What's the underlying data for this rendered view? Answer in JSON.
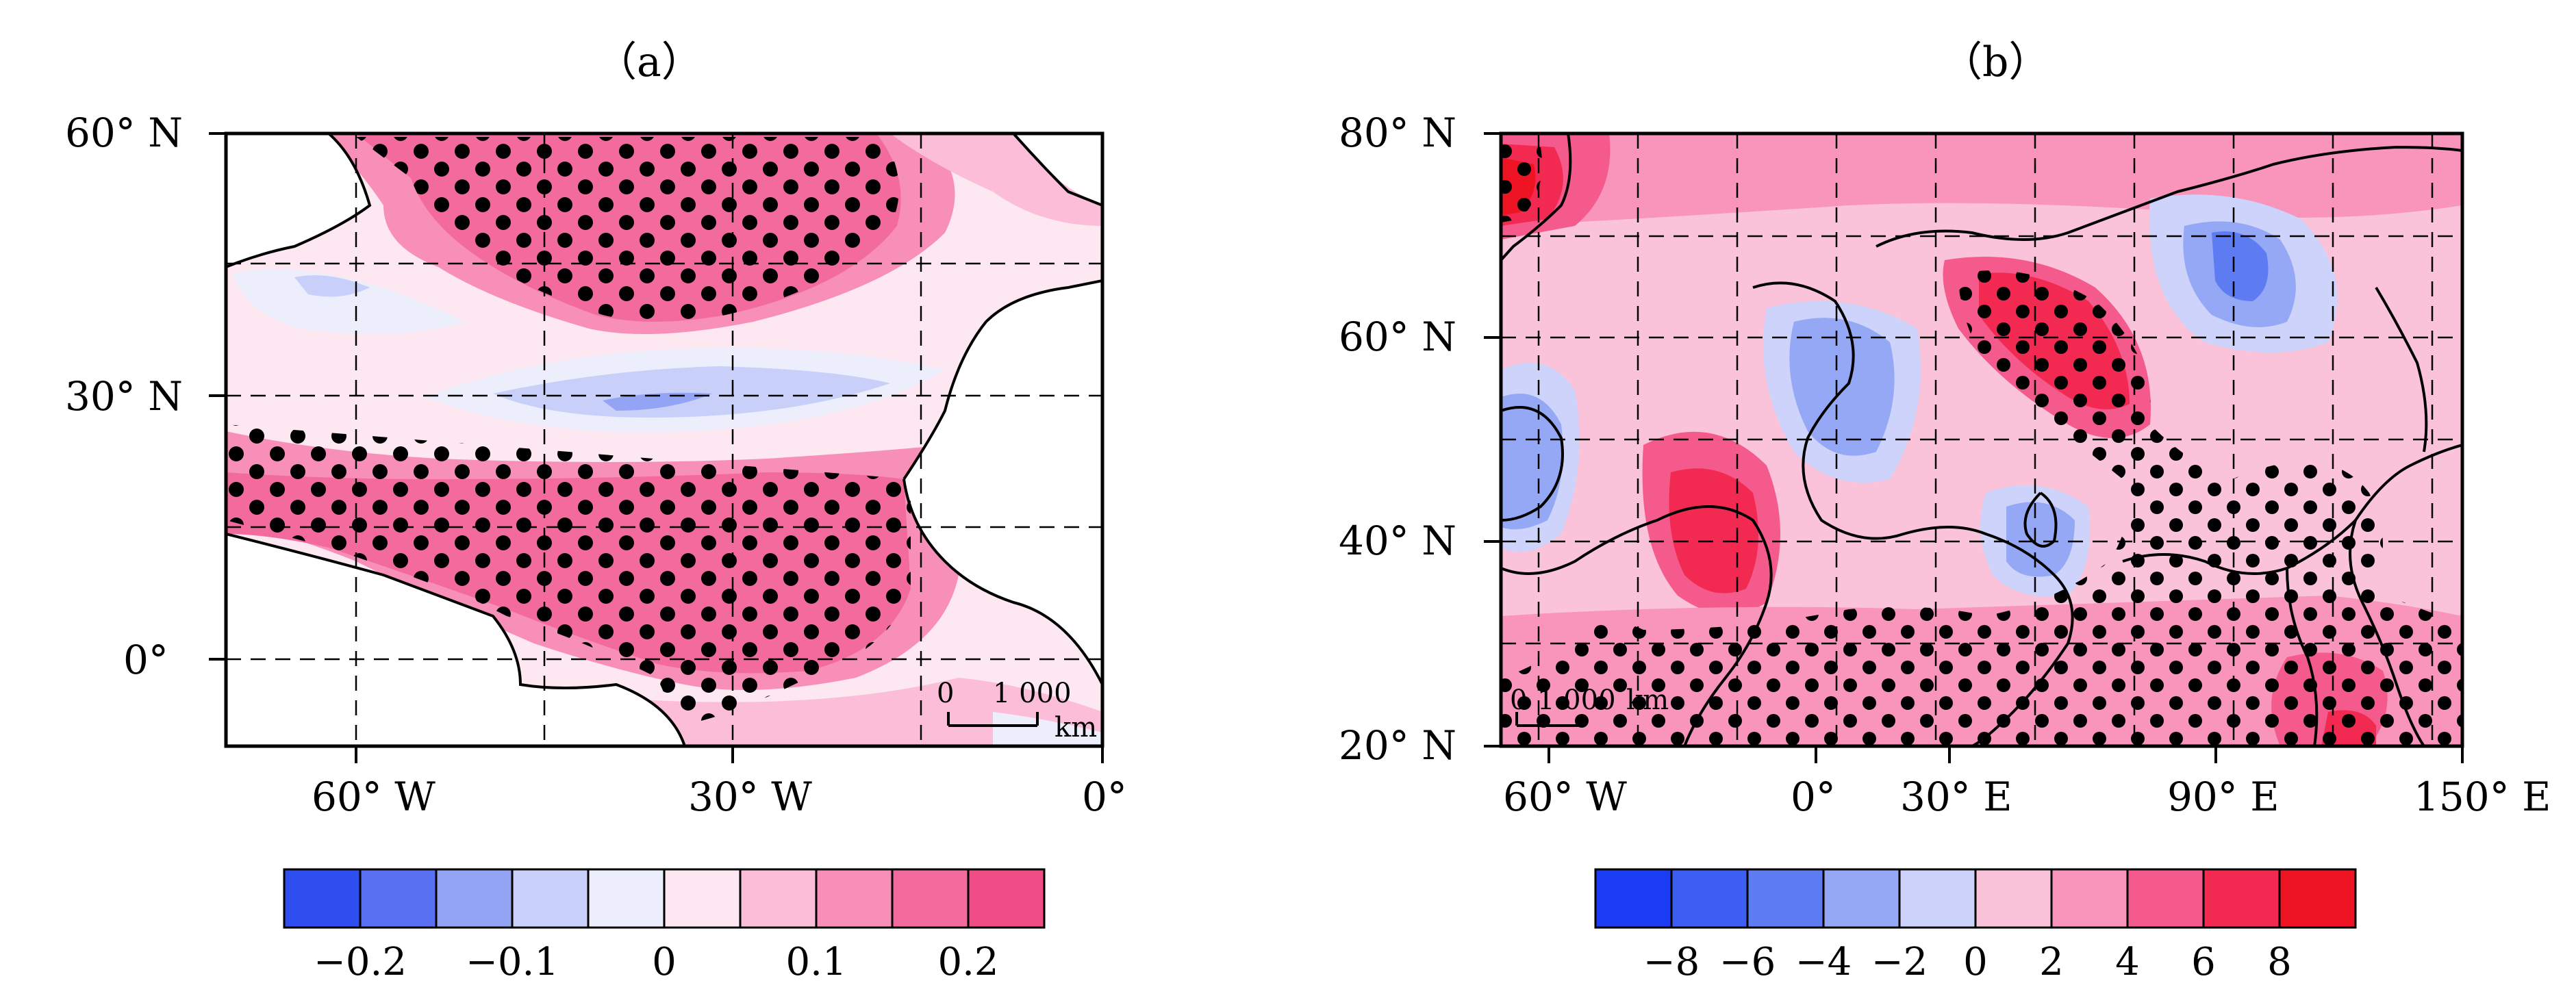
{
  "panels": [
    {
      "title": "（a）",
      "y_ticks": [
        "60° N",
        "30° N",
        "0°"
      ],
      "x_ticks": [
        "60° W",
        "30° W",
        "0°"
      ],
      "scale_bar": {
        "left": "0",
        "right": "1 000",
        "unit": "km"
      },
      "colorbar": {
        "colors": [
          "#2e4ef0",
          "#5a70f2",
          "#94a4f4",
          "#c8cff8",
          "#eceefc",
          "#fde7f0",
          "#fbbdd7",
          "#f88fb8",
          "#f26b9c",
          "#ee4d86"
        ],
        "labels": [
          "−0.2",
          "−0.1",
          "0",
          "0.1",
          "0.2"
        ]
      }
    },
    {
      "title": "（b）",
      "y_ticks": [
        "80° N",
        "60° N",
        "40° N",
        "20° N"
      ],
      "x_ticks": [
        "60° W",
        "0°",
        "30° E",
        "90° E",
        "150° E"
      ],
      "scale_bar": {
        "left": "0",
        "right": "1 000",
        "unit": "km"
      },
      "colorbar": {
        "colors": [
          "#1a3cf2",
          "#3c5ef2",
          "#5e7cf2",
          "#94a8f6",
          "#cdd3fa",
          "#fbc3da",
          "#f994bb",
          "#f45a8c",
          "#f22a52",
          "#ee1424"
        ],
        "labels": [
          "−8",
          "−6",
          "−4",
          "−2",
          "0",
          "2",
          "4",
          "6",
          "8"
        ]
      }
    }
  ]
}
